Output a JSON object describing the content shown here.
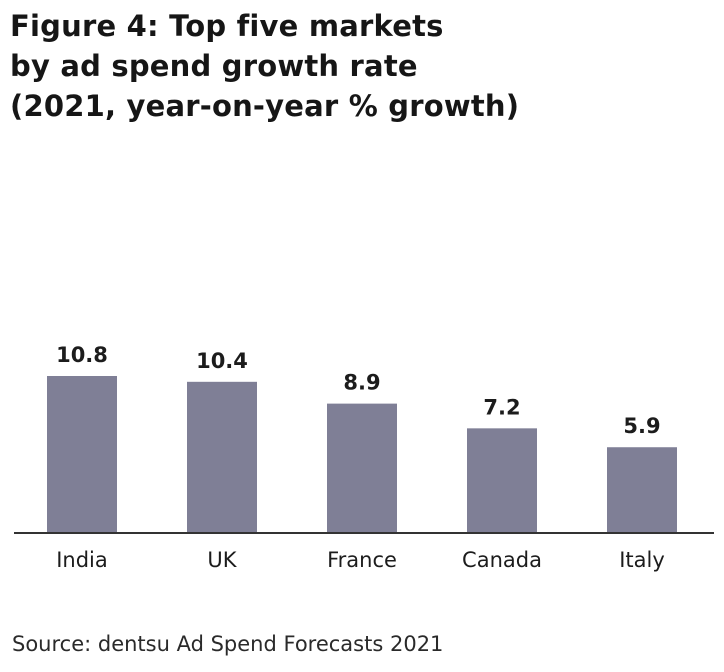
{
  "title_lines": [
    "Figure 4: Top five markets",
    "by ad spend growth rate",
    "(2021, year-on-year % growth)"
  ],
  "source": "Source: dentsu Ad Spend Forecasts 2021",
  "colors": {
    "bar": "#7f7f96",
    "axis": "#333333",
    "text": "#1c1c1c"
  },
  "chart_data": {
    "type": "bar",
    "title": "Figure 4: Top five markets by ad spend growth rate (2021, year-on-year % growth)",
    "categories": [
      "India",
      "UK",
      "France",
      "Canada",
      "Italy"
    ],
    "values": [
      10.8,
      10.4,
      8.9,
      7.2,
      5.9
    ],
    "value_labels": [
      "10.8",
      "10.4",
      "8.9",
      "7.2",
      "5.9"
    ],
    "xlabel": "",
    "ylabel": "",
    "ylim": [
      0,
      10.8
    ],
    "grid": false,
    "legend": "none"
  }
}
